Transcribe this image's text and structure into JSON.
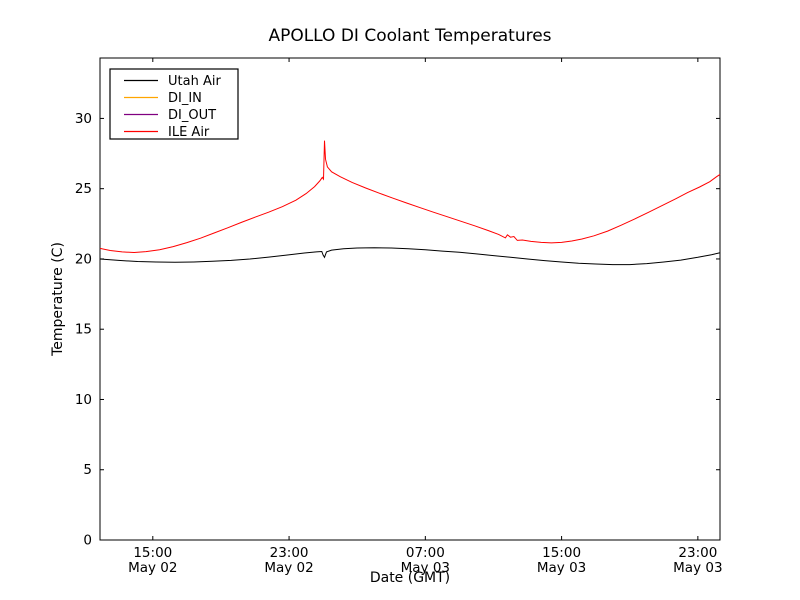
{
  "window": {
    "background": "#ffffff",
    "frame_color": "#000000"
  },
  "chart_data": {
    "type": "line",
    "title": "APOLLO DI Coolant Temperatures",
    "xlabel": "Date (GMT)",
    "ylabel": "Temperature (C)",
    "x_unit": "hours since May 02 00:00 GMT",
    "xlim": [
      11.9,
      48.3
    ],
    "ylim": [
      0,
      34.3
    ],
    "grid": false,
    "legend_position": "upper-left",
    "yticks": [
      0,
      5,
      10,
      15,
      20,
      25,
      30
    ],
    "xticks": [
      {
        "value": 15,
        "time": "15:00",
        "date": "May 02"
      },
      {
        "value": 23,
        "time": "23:00",
        "date": "May 02"
      },
      {
        "value": 31,
        "time": "07:00",
        "date": "May 03"
      },
      {
        "value": 39,
        "time": "15:00",
        "date": "May 03"
      },
      {
        "value": 47,
        "time": "23:00",
        "date": "May 03"
      }
    ],
    "series": [
      {
        "name": "Utah Air",
        "color": "#000000",
        "points": [
          [
            11.9,
            20.0
          ],
          [
            13.0,
            19.9
          ],
          [
            14.1,
            19.82
          ],
          [
            15.2,
            19.78
          ],
          [
            16.3,
            19.76
          ],
          [
            17.4,
            19.78
          ],
          [
            18.5,
            19.83
          ],
          [
            19.6,
            19.9
          ],
          [
            20.7,
            20.0
          ],
          [
            21.8,
            20.13
          ],
          [
            22.9,
            20.28
          ],
          [
            23.9,
            20.42
          ],
          [
            24.6,
            20.5
          ],
          [
            24.92,
            20.53
          ],
          [
            25.0,
            20.28
          ],
          [
            25.08,
            20.12
          ],
          [
            25.2,
            20.5
          ],
          [
            25.5,
            20.63
          ],
          [
            26.2,
            20.72
          ],
          [
            27.0,
            20.78
          ],
          [
            28.0,
            20.8
          ],
          [
            29.0,
            20.78
          ],
          [
            30.0,
            20.73
          ],
          [
            31.0,
            20.65
          ],
          [
            32.0,
            20.56
          ],
          [
            33.0,
            20.47
          ],
          [
            34.0,
            20.36
          ],
          [
            35.0,
            20.24
          ],
          [
            36.0,
            20.12
          ],
          [
            37.0,
            20.0
          ],
          [
            38.0,
            19.88
          ],
          [
            39.0,
            19.78
          ],
          [
            40.0,
            19.7
          ],
          [
            41.0,
            19.64
          ],
          [
            42.0,
            19.6
          ],
          [
            43.0,
            19.6
          ],
          [
            44.0,
            19.67
          ],
          [
            45.0,
            19.78
          ],
          [
            46.0,
            19.92
          ],
          [
            47.0,
            20.12
          ],
          [
            47.8,
            20.3
          ],
          [
            48.3,
            20.44
          ]
        ]
      },
      {
        "name": "DI_IN",
        "color": "#ffa500",
        "points": []
      },
      {
        "name": "DI_OUT",
        "color": "#800080",
        "points": []
      },
      {
        "name": "ILE Air",
        "color": "#ff0000",
        "points": [
          [
            11.9,
            20.75
          ],
          [
            12.5,
            20.6
          ],
          [
            13.2,
            20.5
          ],
          [
            13.9,
            20.46
          ],
          [
            14.6,
            20.52
          ],
          [
            15.4,
            20.66
          ],
          [
            16.2,
            20.88
          ],
          [
            17.0,
            21.16
          ],
          [
            17.8,
            21.48
          ],
          [
            18.6,
            21.85
          ],
          [
            19.4,
            22.22
          ],
          [
            20.2,
            22.6
          ],
          [
            21.0,
            22.97
          ],
          [
            21.8,
            23.33
          ],
          [
            22.6,
            23.72
          ],
          [
            23.4,
            24.18
          ],
          [
            24.0,
            24.65
          ],
          [
            24.5,
            25.15
          ],
          [
            24.8,
            25.55
          ],
          [
            24.95,
            25.8
          ],
          [
            25.02,
            25.68
          ],
          [
            25.08,
            28.42
          ],
          [
            25.14,
            27.1
          ],
          [
            25.25,
            26.55
          ],
          [
            25.5,
            26.2
          ],
          [
            26.0,
            25.85
          ],
          [
            26.7,
            25.45
          ],
          [
            27.5,
            25.05
          ],
          [
            28.3,
            24.68
          ],
          [
            29.1,
            24.32
          ],
          [
            29.9,
            23.98
          ],
          [
            30.7,
            23.65
          ],
          [
            31.5,
            23.32
          ],
          [
            32.3,
            23.0
          ],
          [
            33.1,
            22.68
          ],
          [
            33.9,
            22.36
          ],
          [
            34.7,
            22.02
          ],
          [
            35.3,
            21.75
          ],
          [
            35.7,
            21.5
          ],
          [
            35.82,
            21.72
          ],
          [
            36.0,
            21.55
          ],
          [
            36.2,
            21.6
          ],
          [
            36.4,
            21.32
          ],
          [
            36.7,
            21.35
          ],
          [
            37.2,
            21.25
          ],
          [
            37.8,
            21.18
          ],
          [
            38.4,
            21.14
          ],
          [
            39.0,
            21.18
          ],
          [
            39.6,
            21.28
          ],
          [
            40.2,
            21.42
          ],
          [
            40.9,
            21.65
          ],
          [
            41.7,
            21.98
          ],
          [
            42.5,
            22.4
          ],
          [
            43.3,
            22.85
          ],
          [
            44.1,
            23.32
          ],
          [
            44.9,
            23.8
          ],
          [
            45.7,
            24.28
          ],
          [
            46.4,
            24.72
          ],
          [
            47.1,
            25.12
          ],
          [
            47.7,
            25.5
          ],
          [
            48.1,
            25.85
          ],
          [
            48.3,
            26.02
          ]
        ]
      }
    ]
  }
}
